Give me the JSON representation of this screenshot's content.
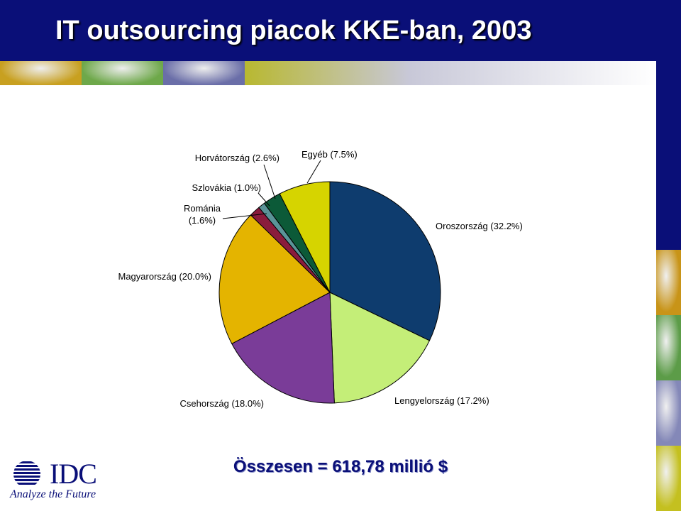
{
  "header": {
    "title": "IT outsourcing piacok KKE-ban, 2003"
  },
  "colors": {
    "header_bg": "#0a0f78",
    "strip": [
      "#c8a020",
      "#6ea84a",
      "#6a6ea8",
      "#b8b830"
    ],
    "band": [
      "#c89418",
      "#5c9c48",
      "#8488b8",
      "#c4c020"
    ]
  },
  "chart_data": {
    "type": "pie",
    "title": "",
    "slices": [
      {
        "label": "Oroszország (32.2%)",
        "value": 32.2,
        "color": "#0e3c6e"
      },
      {
        "label": "Lengyelország (17.2%)",
        "value": 17.2,
        "color": "#c4ee78"
      },
      {
        "label": "Csehország (18.0%)",
        "value": 18.0,
        "color": "#7a3c98"
      },
      {
        "label": "Magyarország (20.0%)",
        "value": 20.0,
        "color": "#e4b400"
      },
      {
        "label": "Románia",
        "label2": "(1.6%)",
        "value": 1.6,
        "color": "#8a1c3c"
      },
      {
        "label": "Szlovákia (1.0%)",
        "value": 1.0,
        "color": "#5a9498"
      },
      {
        "label": "Horvátország (2.6%)",
        "value": 2.6,
        "color": "#0c5a38"
      },
      {
        "label": "Egyéb (7.5%)",
        "value": 7.5,
        "color": "#d6d400"
      }
    ]
  },
  "total": "Összesen = 618,78 millió $",
  "logo": {
    "name": "IDC",
    "tagline": "Analyze the Future"
  }
}
